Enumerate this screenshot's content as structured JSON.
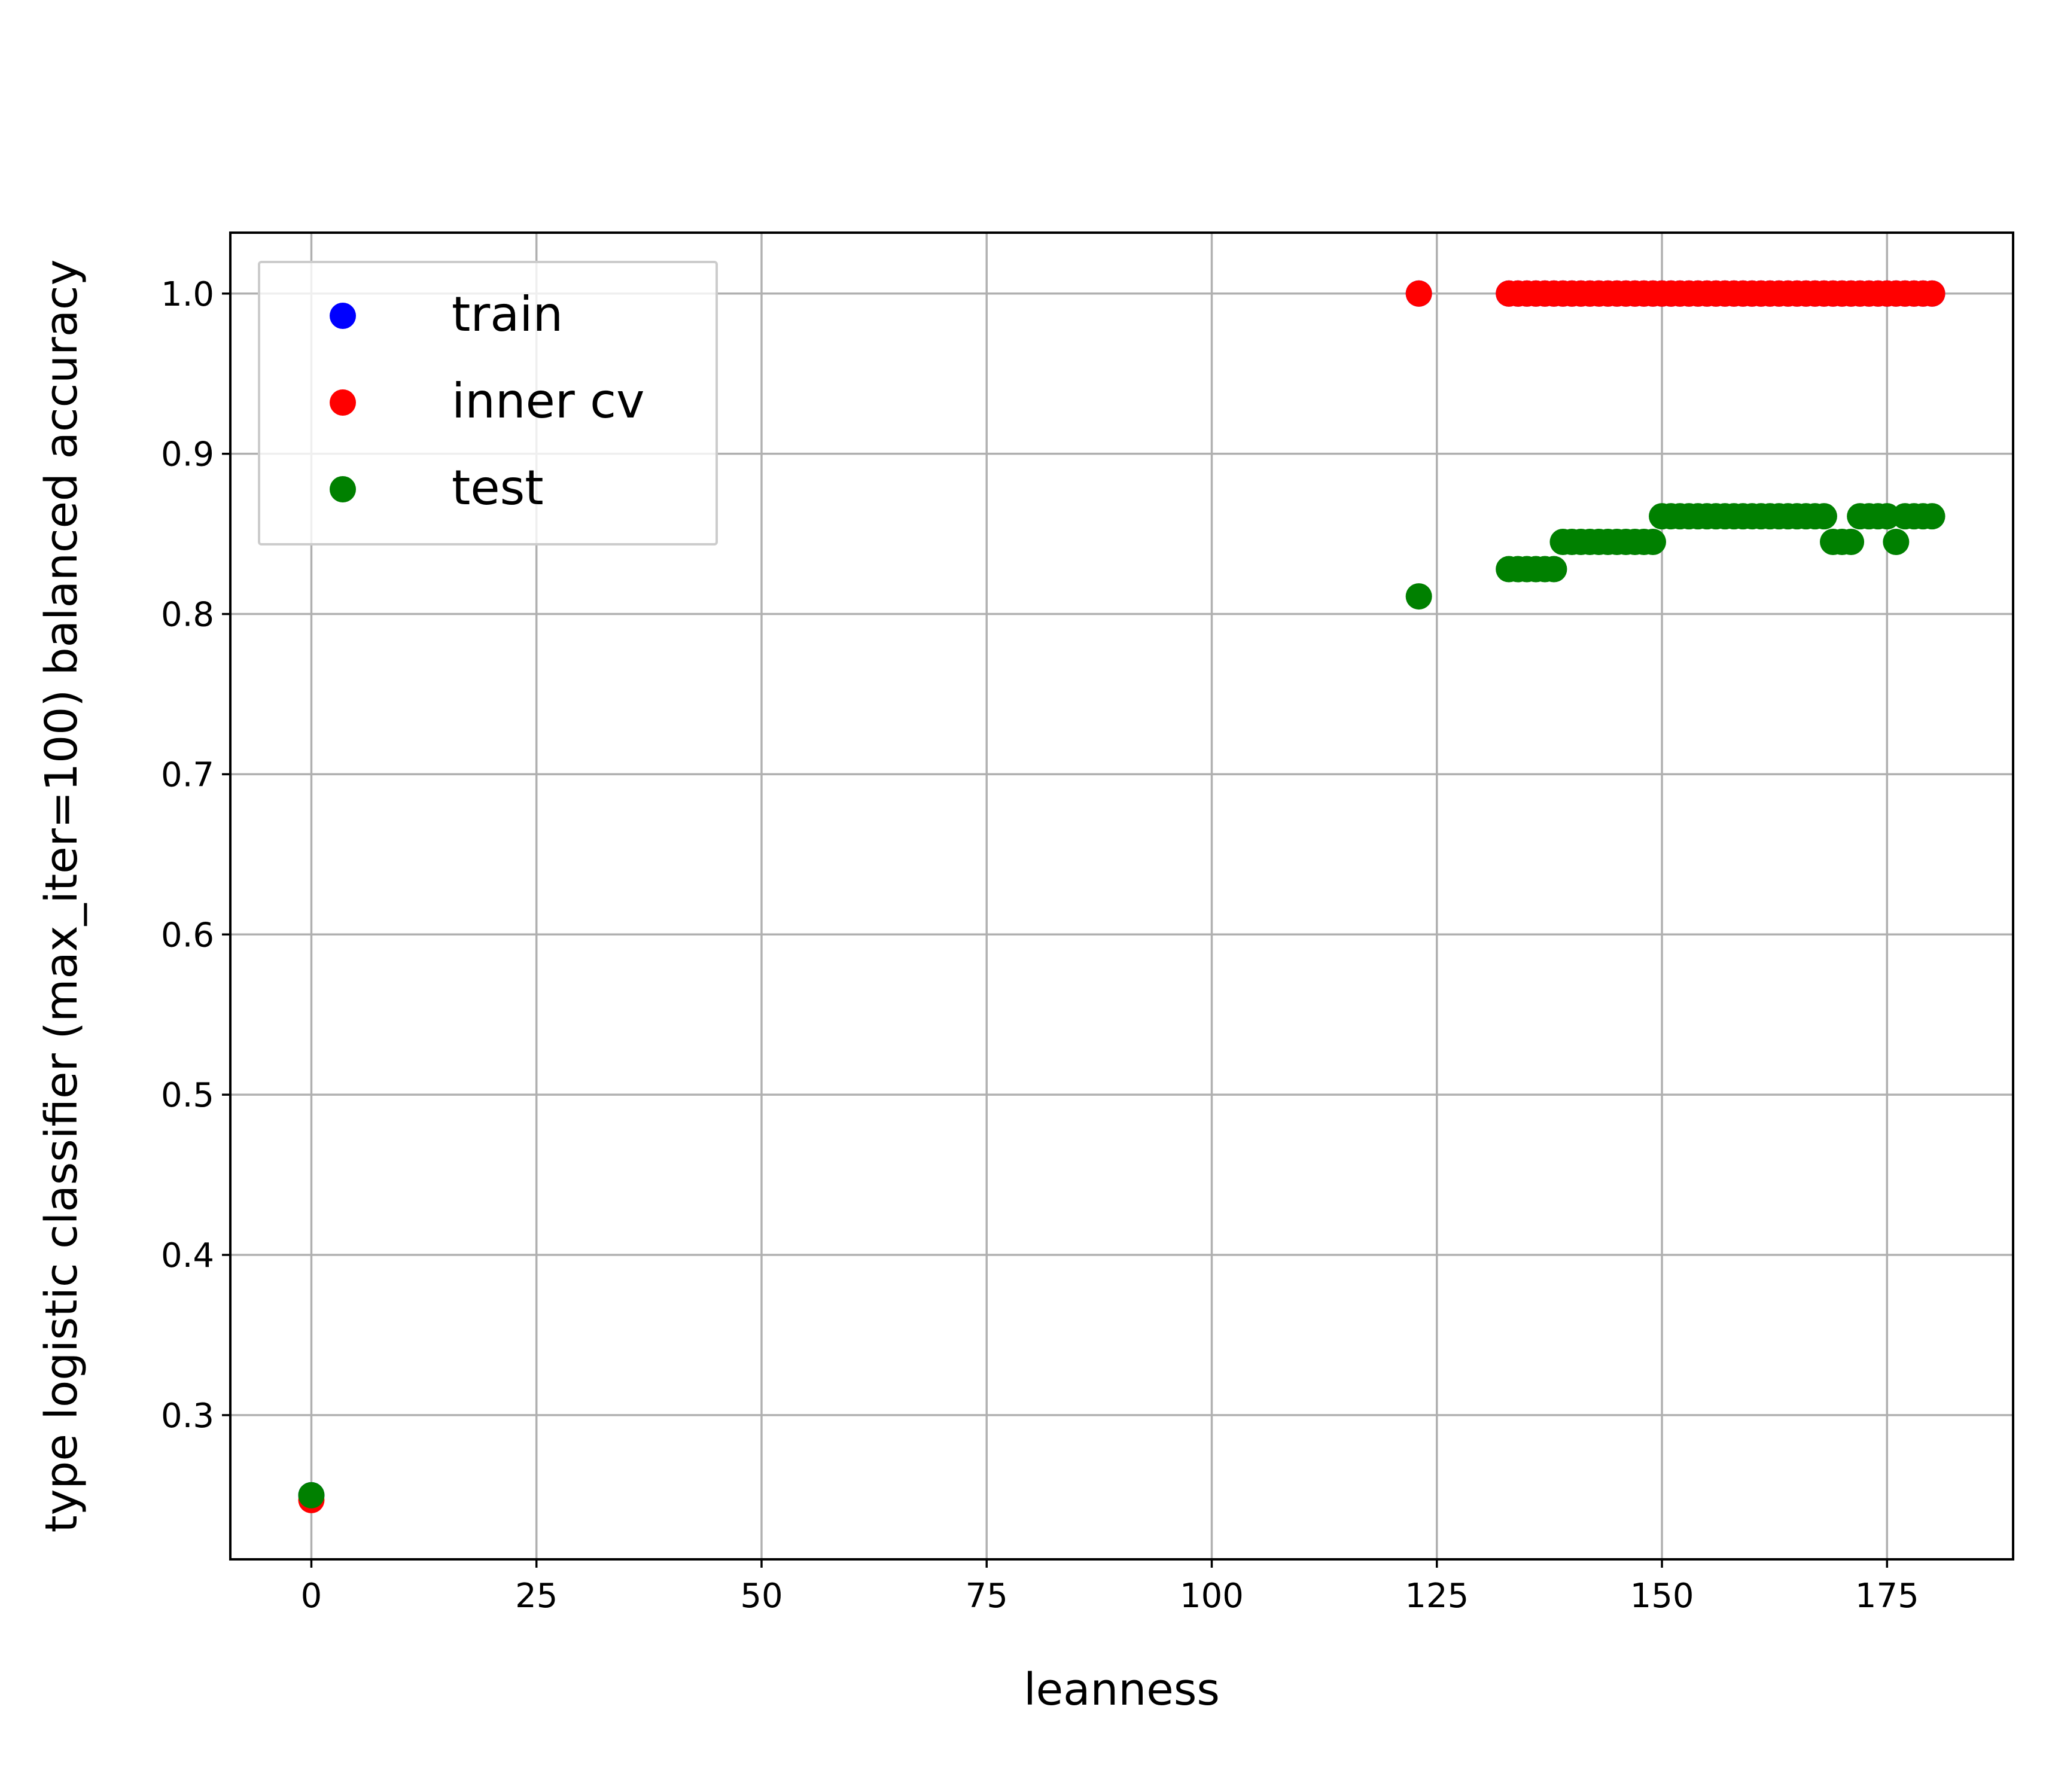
{
  "chart_data": {
    "type": "scatter",
    "title": "",
    "xlabel": "leanness",
    "ylabel": "type logistic classifier (max_iter=100) balanced accuracy",
    "xlim": [
      -9,
      189
    ],
    "ylim": [
      0.21,
      1.038
    ],
    "xticks": [
      0,
      25,
      50,
      75,
      100,
      125,
      150,
      175
    ],
    "yticks": [
      0.3,
      0.4,
      0.5,
      0.6,
      0.7,
      0.8,
      0.9,
      1.0
    ],
    "xtick_labels": [
      "0",
      "25",
      "50",
      "75",
      "100",
      "125",
      "150",
      "175"
    ],
    "ytick_labels": [
      "0.3",
      "0.4",
      "0.5",
      "0.6",
      "0.7",
      "0.8",
      "0.9",
      "1.0"
    ],
    "grid": true,
    "legend_position": "top-left",
    "series": [
      {
        "name": "train",
        "color": "#0000ff",
        "x": [
          0,
          123,
          133,
          134,
          135,
          136,
          137,
          138,
          139,
          140,
          141,
          142,
          143,
          144,
          145,
          146,
          147,
          148,
          149,
          150,
          151,
          152,
          153,
          154,
          155,
          156,
          157,
          158,
          159,
          160,
          161,
          162,
          163,
          164,
          165,
          166,
          167,
          168,
          169,
          170,
          171,
          172,
          173,
          174,
          175,
          176,
          177,
          178,
          179,
          180
        ],
        "y": [
          0.25,
          1.0,
          1.0,
          1.0,
          1.0,
          1.0,
          1.0,
          1.0,
          1.0,
          1.0,
          1.0,
          1.0,
          1.0,
          1.0,
          1.0,
          1.0,
          1.0,
          1.0,
          1.0,
          1.0,
          1.0,
          1.0,
          1.0,
          1.0,
          1.0,
          1.0,
          1.0,
          1.0,
          1.0,
          1.0,
          1.0,
          1.0,
          1.0,
          1.0,
          1.0,
          1.0,
          1.0,
          1.0,
          1.0,
          1.0,
          1.0,
          1.0,
          1.0,
          1.0,
          1.0,
          1.0,
          1.0,
          1.0,
          1.0,
          1.0
        ]
      },
      {
        "name": "inner cv",
        "color": "#ff0000",
        "x": [
          0,
          123,
          133,
          134,
          135,
          136,
          137,
          138,
          139,
          140,
          141,
          142,
          143,
          144,
          145,
          146,
          147,
          148,
          149,
          150,
          151,
          152,
          153,
          154,
          155,
          156,
          157,
          158,
          159,
          160,
          161,
          162,
          163,
          164,
          165,
          166,
          167,
          168,
          169,
          170,
          171,
          172,
          173,
          174,
          175,
          176,
          177,
          178,
          179,
          180
        ],
        "y": [
          0.247,
          1.0,
          1.0,
          1.0,
          1.0,
          1.0,
          1.0,
          1.0,
          1.0,
          1.0,
          1.0,
          1.0,
          1.0,
          1.0,
          1.0,
          1.0,
          1.0,
          1.0,
          1.0,
          1.0,
          1.0,
          1.0,
          1.0,
          1.0,
          1.0,
          1.0,
          1.0,
          1.0,
          1.0,
          1.0,
          1.0,
          1.0,
          1.0,
          1.0,
          1.0,
          1.0,
          1.0,
          1.0,
          1.0,
          1.0,
          1.0,
          1.0,
          1.0,
          1.0,
          1.0,
          1.0,
          1.0,
          1.0,
          1.0,
          1.0
        ]
      },
      {
        "name": "test",
        "color": "#008000",
        "x": [
          0,
          123,
          133,
          134,
          135,
          136,
          137,
          138,
          139,
          140,
          141,
          142,
          143,
          144,
          145,
          146,
          147,
          148,
          149,
          150,
          151,
          152,
          153,
          154,
          155,
          156,
          157,
          158,
          159,
          160,
          161,
          162,
          163,
          164,
          165,
          166,
          167,
          168,
          169,
          170,
          171,
          172,
          173,
          174,
          175,
          176,
          177,
          178,
          179,
          180
        ],
        "y": [
          0.25,
          0.811,
          0.828,
          0.828,
          0.828,
          0.828,
          0.828,
          0.828,
          0.845,
          0.845,
          0.845,
          0.845,
          0.845,
          0.845,
          0.845,
          0.845,
          0.845,
          0.845,
          0.845,
          0.861,
          0.861,
          0.861,
          0.861,
          0.861,
          0.861,
          0.861,
          0.861,
          0.861,
          0.861,
          0.861,
          0.861,
          0.861,
          0.861,
          0.861,
          0.861,
          0.861,
          0.861,
          0.861,
          0.845,
          0.845,
          0.845,
          0.861,
          0.861,
          0.861,
          0.861,
          0.845,
          0.861,
          0.861,
          0.861,
          0.861
        ]
      }
    ]
  }
}
